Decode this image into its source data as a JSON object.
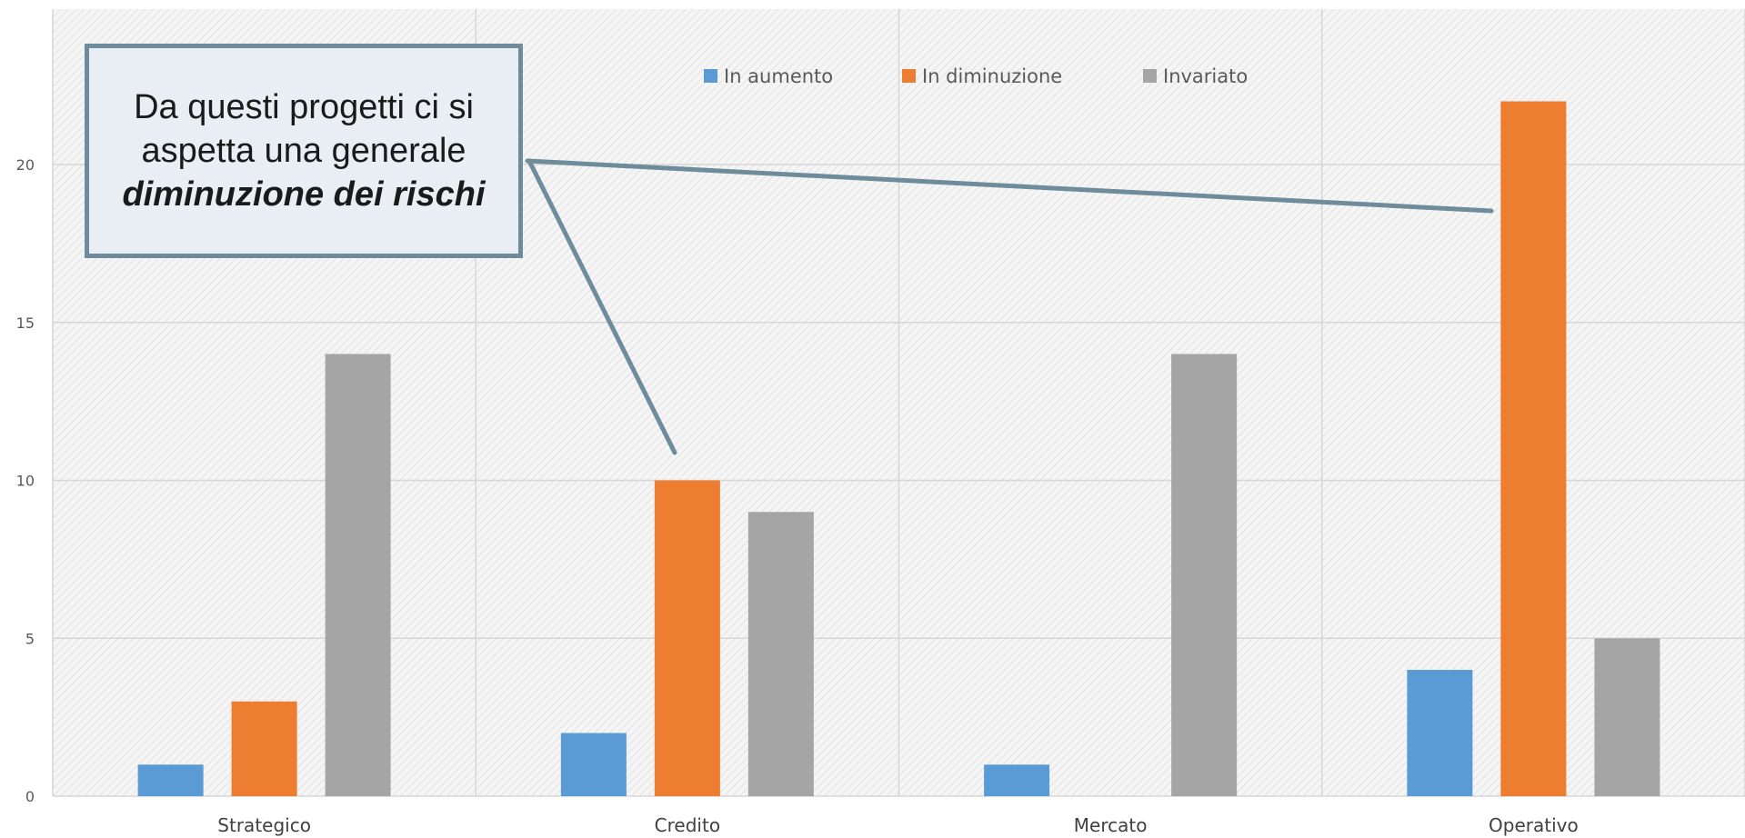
{
  "chart_data": {
    "type": "bar",
    "categories": [
      "Strategico",
      "Credito",
      "Mercato",
      "Operativo"
    ],
    "series": [
      {
        "name": "In aumento",
        "values": [
          1,
          2,
          1,
          4
        ],
        "color": "#5b9bd5"
      },
      {
        "name": "In diminuzione",
        "values": [
          3,
          10,
          0,
          22
        ],
        "color": "#ed7d31"
      },
      {
        "name": "Invariato",
        "values": [
          14,
          9,
          14,
          5
        ],
        "color": "#a5a5a5"
      }
    ],
    "yticks": [
      0,
      5,
      10,
      15,
      20
    ],
    "ylim": [
      0,
      25
    ],
    "grid": true,
    "legend": "top-center",
    "annotation": {
      "line1": "Da questi progetti ci si",
      "line2": "aspetta una generale",
      "emphasis": "diminuzione dei rischi"
    }
  }
}
